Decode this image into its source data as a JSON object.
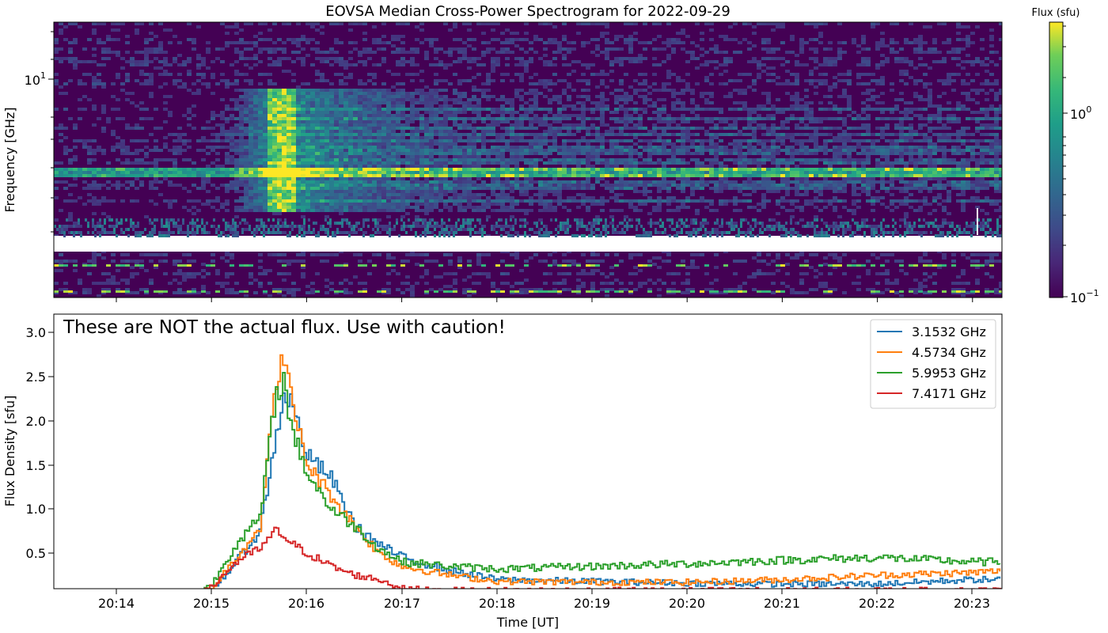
{
  "spectrogram": {
    "title": "EOVSA Median Cross-Power Spectrogram for 2022-09-29",
    "ylabel": "Frequency [GHz]",
    "ytick_label_base": "10",
    "ytick_label_exp": "1",
    "colorbar": {
      "title": "Flux (sfu)",
      "scale": "log",
      "colormap": "viridis",
      "ticks": [
        {
          "base": "10",
          "exp": "0"
        },
        {
          "base": "10",
          "exp": "−1"
        }
      ]
    }
  },
  "lightcurve": {
    "annotation": "These are NOT the actual flux. Use with caution!",
    "ylabel": "Flux Density [sfu]",
    "xlabel": "Time [UT]",
    "ytick_labels": [
      "0.5",
      "1.0",
      "1.5",
      "2.0",
      "2.5",
      "3.0"
    ],
    "xtick_labels": [
      "20:14",
      "20:15",
      "20:16",
      "20:17",
      "20:18",
      "20:19",
      "20:20",
      "20:21",
      "20:22",
      "20:23"
    ],
    "legend": [
      {
        "label": "3.1532 GHz",
        "color": "#1f77b4"
      },
      {
        "label": "4.5734 GHz",
        "color": "#ff7f0e"
      },
      {
        "label": "5.9953 GHz",
        "color": "#2ca02c"
      },
      {
        "label": "7.4171 GHz",
        "color": "#d62728"
      }
    ]
  },
  "chart_data": [
    {
      "type": "heatmap",
      "title": "EOVSA Median Cross-Power Spectrogram for 2022-09-29",
      "xlabel": "",
      "ylabel": "Frequency [GHz]",
      "yscale": "log",
      "ytick_values": [
        10
      ],
      "colorbar_title": "Flux (sfu)",
      "colorbar_scale": "log",
      "colorbar_ticks": [
        1.0,
        0.1
      ],
      "x_range": [
        "20:13:20",
        "20:23:20"
      ],
      "features": "bright burst peaking near 20:15:40 across ~4-8 GHz; persistent bright band near 5 GHz; blank band near 2.4 GHz"
    },
    {
      "type": "line",
      "title": "",
      "xlabel": "Time [UT]",
      "ylabel": "Flux Density [sfu]",
      "x_ticks": [
        "20:14",
        "20:15",
        "20:16",
        "20:17",
        "20:18",
        "20:19",
        "20:20",
        "20:21",
        "20:22",
        "20:23"
      ],
      "ylim": [
        0.1,
        3.2
      ],
      "legend_position": "top-right",
      "x": [
        "20:15:00",
        "20:15:15",
        "20:15:30",
        "20:15:40",
        "20:15:45",
        "20:15:50",
        "20:16:00",
        "20:16:15",
        "20:16:30",
        "20:16:45",
        "20:17:00",
        "20:17:30",
        "20:18:00",
        "20:19:00",
        "20:20:00",
        "20:21:00",
        "20:22:00",
        "20:23:00",
        "20:23:20"
      ],
      "series": [
        {
          "name": "3.1532 GHz",
          "values": [
            0.08,
            0.4,
            0.75,
            1.8,
            2.3,
            2.2,
            1.6,
            1.35,
            0.8,
            0.6,
            0.45,
            0.3,
            0.2,
            0.18,
            0.16,
            0.15,
            0.15,
            0.2,
            0.2
          ]
        },
        {
          "name": "4.5734 GHz",
          "values": [
            0.1,
            0.45,
            0.8,
            2.4,
            2.78,
            2.2,
            1.5,
            1.15,
            0.8,
            0.5,
            0.35,
            0.25,
            0.18,
            0.17,
            0.17,
            0.2,
            0.25,
            0.28,
            0.3
          ]
        },
        {
          "name": "5.9953 GHz",
          "values": [
            0.15,
            0.6,
            0.9,
            2.3,
            2.45,
            1.9,
            1.4,
            1.0,
            0.8,
            0.55,
            0.4,
            0.35,
            0.32,
            0.35,
            0.38,
            0.42,
            0.45,
            0.4,
            0.4
          ]
        },
        {
          "name": "7.4171 GHz",
          "values": [
            0.12,
            0.4,
            0.55,
            0.75,
            0.7,
            0.6,
            0.5,
            0.35,
            0.25,
            0.2,
            0.1,
            0.08,
            0.08,
            0.08,
            0.08,
            0.08,
            0.08,
            0.08,
            0.08
          ]
        }
      ]
    }
  ]
}
